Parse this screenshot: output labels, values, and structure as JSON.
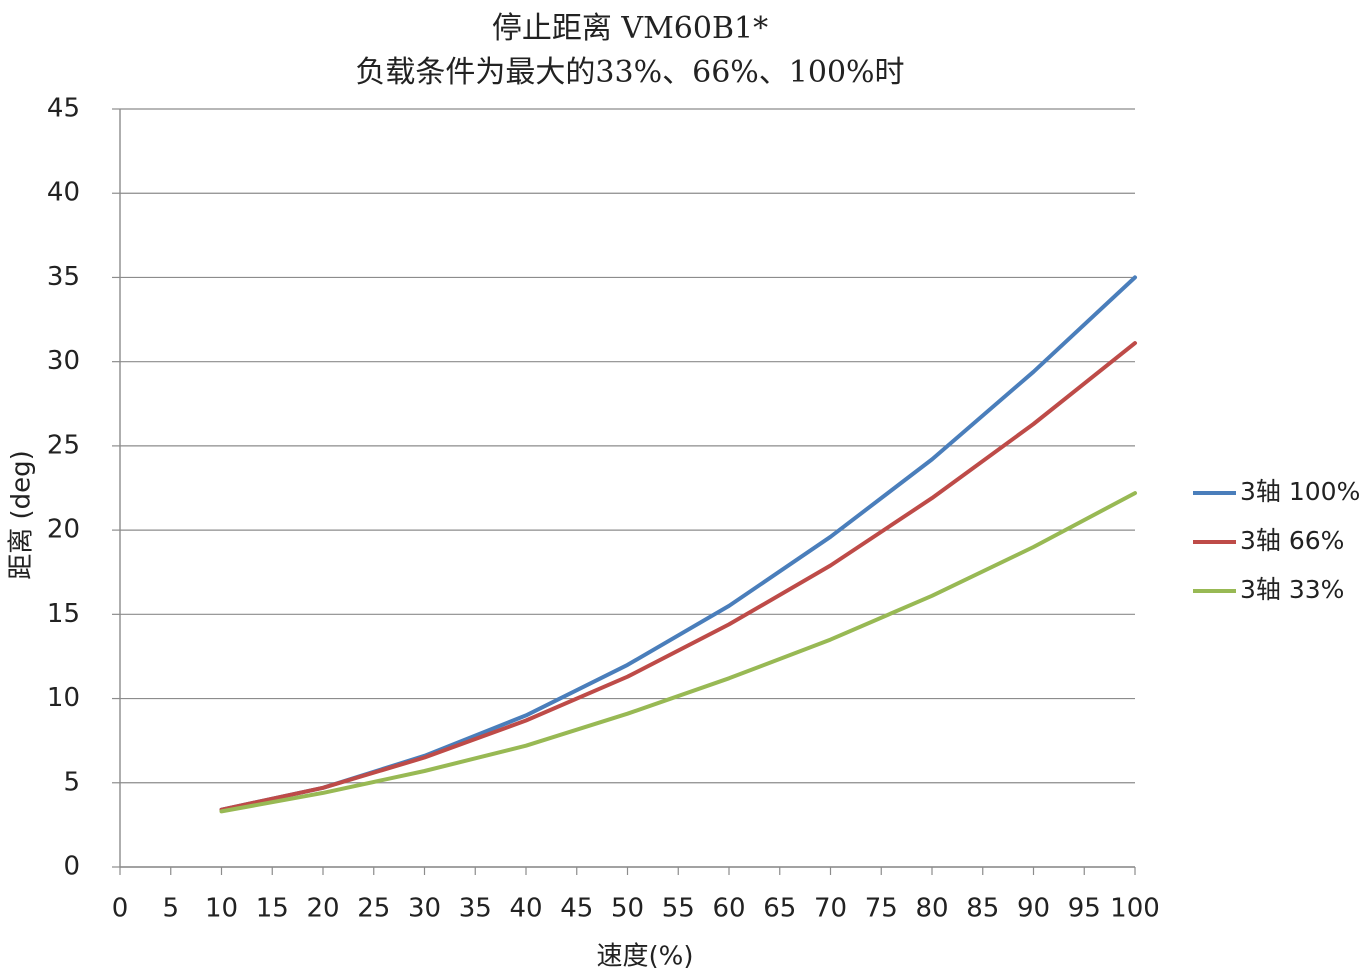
{
  "chart_data": {
    "type": "line",
    "title": [
      "停止距离 VM60B1*",
      "负载条件为最大的33%、66%、100%时"
    ],
    "xlabel": "速度(%)",
    "ylabel": "距离 (deg)",
    "x": [
      10,
      20,
      30,
      40,
      50,
      60,
      70,
      80,
      90,
      100
    ],
    "xlim": [
      0,
      100
    ],
    "ylim": [
      0,
      45
    ],
    "xticks": [
      0,
      5,
      10,
      15,
      20,
      25,
      30,
      35,
      40,
      45,
      50,
      55,
      60,
      65,
      70,
      75,
      80,
      85,
      90,
      95,
      100
    ],
    "yticks": [
      0,
      5,
      10,
      15,
      20,
      25,
      30,
      35,
      40,
      45
    ],
    "grid": "horizontal",
    "legend_position": "right",
    "series": [
      {
        "name": "3轴  100%",
        "color": "#4a7ebb",
        "values": [
          3.4,
          4.7,
          6.6,
          9.0,
          12.0,
          15.5,
          19.6,
          24.2,
          29.4,
          35.0
        ]
      },
      {
        "name": "3轴  66%",
        "color": "#be4b48",
        "values": [
          3.4,
          4.7,
          6.5,
          8.7,
          11.3,
          14.4,
          17.9,
          21.9,
          26.3,
          31.1
        ]
      },
      {
        "name": "3轴  33%",
        "color": "#98b954",
        "values": [
          3.3,
          4.4,
          5.7,
          7.2,
          9.1,
          11.2,
          13.5,
          16.1,
          19.0,
          22.2
        ]
      }
    ]
  }
}
